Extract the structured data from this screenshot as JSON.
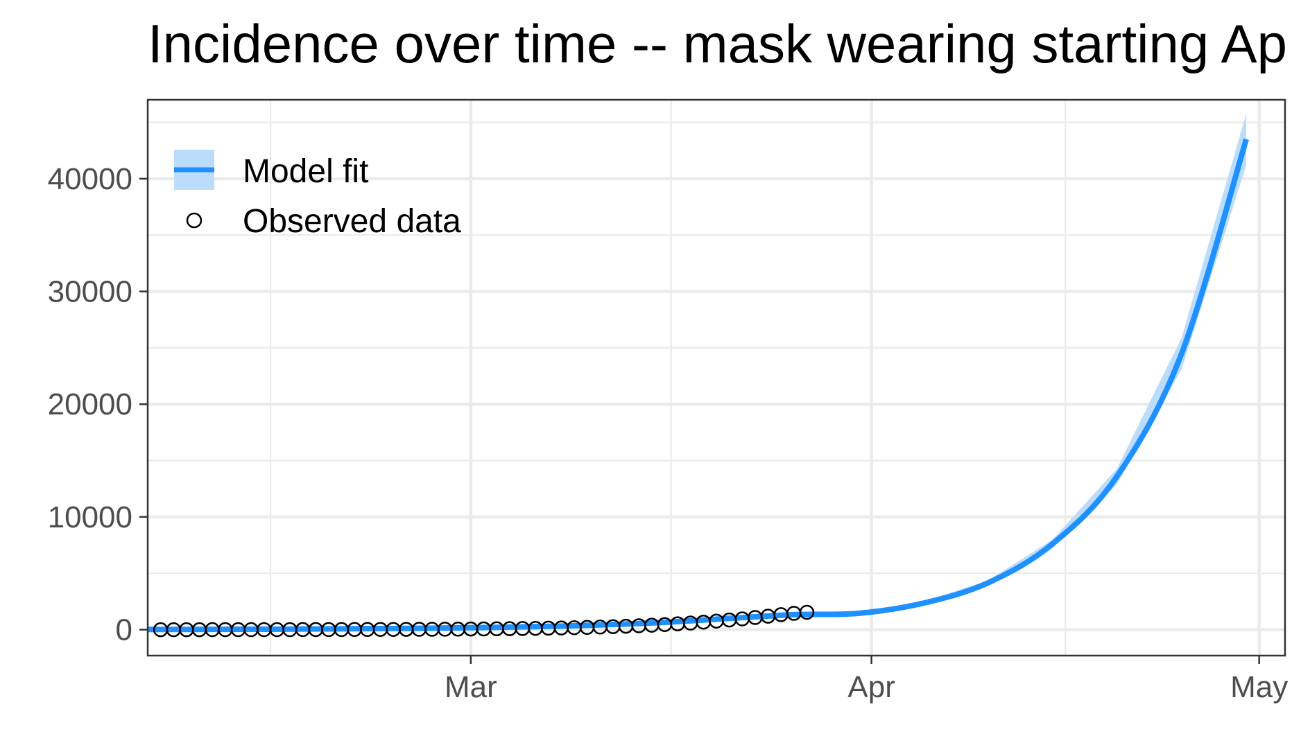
{
  "chart_data": {
    "type": "line",
    "title": "Incidence over time -- mask wearing starting Ap",
    "xlabel": "",
    "ylabel": "",
    "x_tick_labels": [
      "Mar",
      "Apr",
      "May"
    ],
    "x_tick_dates": [
      "2020-03-01",
      "2020-04-01",
      "2020-05-01"
    ],
    "y_ticks": [
      0,
      10000,
      20000,
      30000,
      40000
    ],
    "ylim": [
      -2300,
      47000
    ],
    "xlim": [
      "2020-02-05",
      "2020-05-03"
    ],
    "grid": true,
    "legend_position": "top-left",
    "series": [
      {
        "name": "Model fit",
        "kind": "line-with-ribbon",
        "color": "#1e90ff",
        "ribbon_color": "#bcdcfc",
        "x": [
          "2020-02-05",
          "2020-02-10",
          "2020-02-15",
          "2020-02-20",
          "2020-02-25",
          "2020-03-01",
          "2020-03-06",
          "2020-03-11",
          "2020-03-16",
          "2020-03-21",
          "2020-03-26",
          "2020-03-31",
          "2020-04-05",
          "2020-04-10",
          "2020-04-15",
          "2020-04-20",
          "2020-04-25",
          "2020-04-30"
        ],
        "y": [
          18,
          28,
          44,
          70,
          110,
          172,
          268,
          418,
          650,
          1000,
          1330,
          1450,
          2350,
          4150,
          7600,
          13600,
          24500,
          43500
        ],
        "ribbon_upper": [
          20,
          30,
          47,
          74,
          116,
          181,
          282,
          440,
          684,
          1050,
          1390,
          1520,
          2470,
          4360,
          7980,
          14300,
          25900,
          45800
        ],
        "ribbon_lower": [
          16,
          26,
          41,
          66,
          104,
          163,
          254,
          396,
          616,
          950,
          1270,
          1380,
          2230,
          3940,
          7220,
          12900,
          23100,
          41200
        ]
      },
      {
        "name": "Observed data",
        "kind": "points",
        "marker": "open-circle",
        "color": "#000000",
        "x_start": "2020-02-06",
        "y": [
          1,
          1,
          2,
          2,
          3,
          3,
          4,
          5,
          6,
          7,
          8,
          9,
          10,
          12,
          14,
          16,
          19,
          22,
          25,
          29,
          33,
          38,
          44,
          51,
          59,
          68,
          78,
          90,
          103,
          118,
          135,
          155,
          178,
          204,
          234,
          268,
          307,
          351,
          400,
          456,
          520,
          590,
          670,
          760,
          860,
          960,
          1080,
          1200,
          1330,
          1450,
          1540
        ]
      }
    ]
  }
}
